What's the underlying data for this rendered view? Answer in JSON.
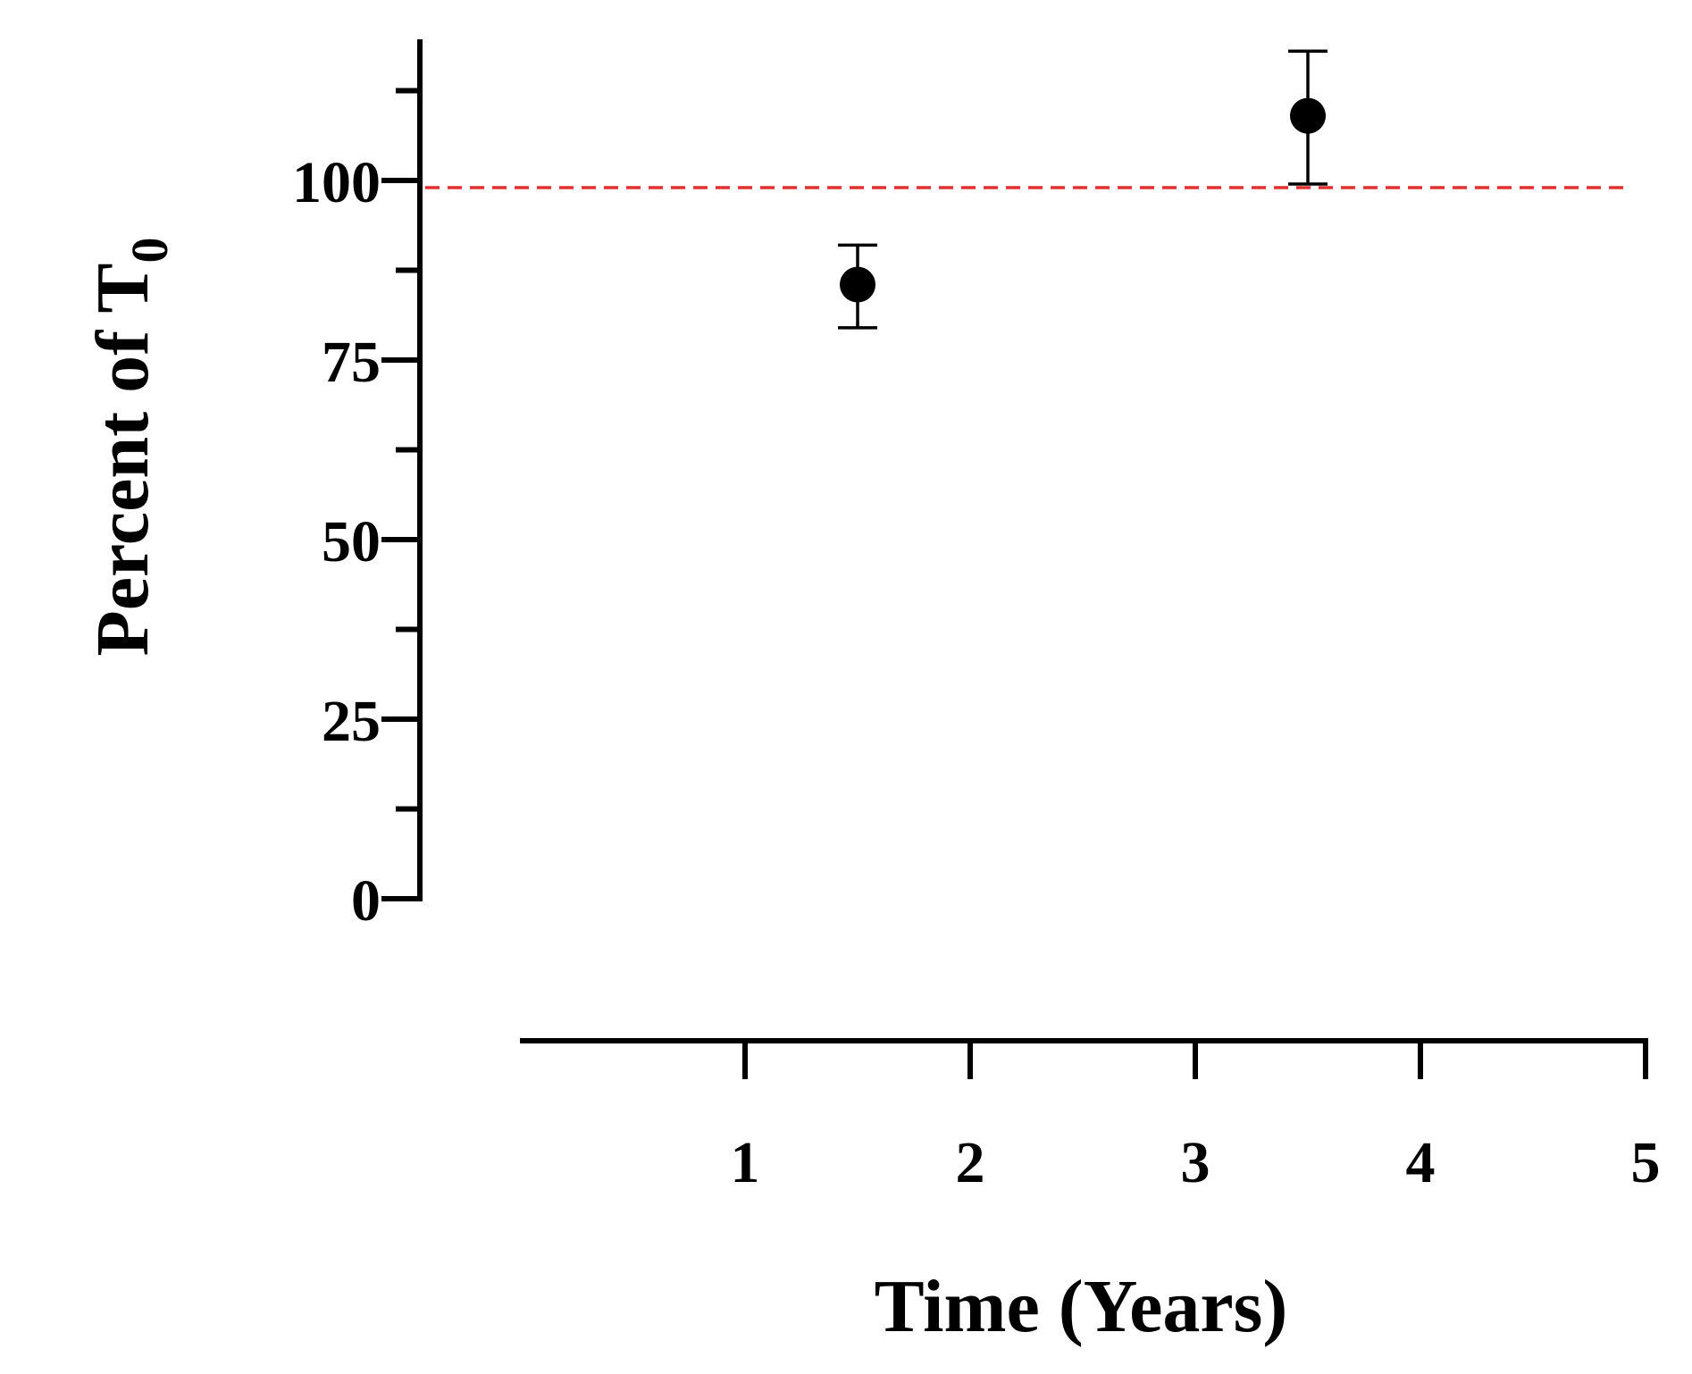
{
  "chart_data": {
    "type": "scatter",
    "title": "",
    "xlabel": "Time (Years)",
    "ylabel_main": "Percent of T",
    "ylabel_subscript": "0",
    "xlim": [
      0,
      5
    ],
    "ylim": [
      0,
      120
    ],
    "x_ticks": [
      1,
      2,
      3,
      4,
      5
    ],
    "x_tick_labels": [
      "1",
      "2",
      "3",
      "4",
      "5"
    ],
    "y_major_ticks": [
      0,
      25,
      50,
      75,
      100
    ],
    "y_tick_labels": [
      "0",
      "25",
      "50",
      "75",
      "100"
    ],
    "y_minor_ticks": [
      12.5,
      37.5,
      62.5,
      87.5,
      112.5
    ],
    "grid": false,
    "legend": "none",
    "series": [
      {
        "x": [
          1.5,
          3.5
        ],
        "y": [
          85.5,
          109
        ],
        "error_low": [
          79.5,
          99.5
        ],
        "error_high": [
          91,
          118
        ],
        "marker": "filled-circle",
        "color": "#000000"
      }
    ],
    "reference_line": {
      "y": 99,
      "style": "dashed",
      "color": "#e03030"
    }
  }
}
